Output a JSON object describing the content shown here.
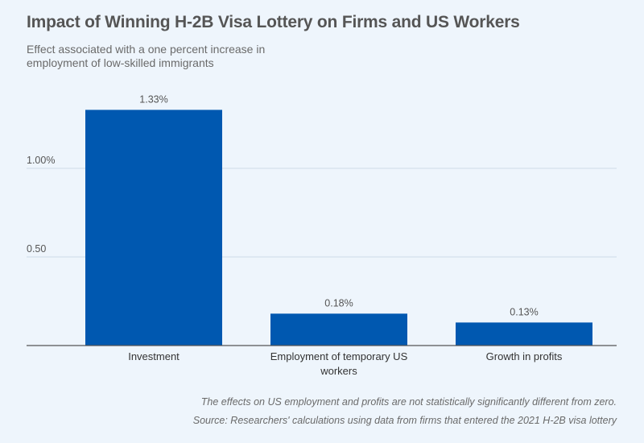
{
  "title": "Impact of Winning H-2B Visa Lottery on Firms and US Workers",
  "subtitle": "Effect associated with a one percent increase in employment of low-skilled immigrants",
  "note": "The effects on US employment and profits are not statistically significantly different from zero.",
  "source": "Source: Researchers' calculations using data from firms that entered the 2021 H-2B visa lottery",
  "colors": {
    "bar": "#0058b0",
    "grid": "#cfdbe8",
    "axis": "#555555",
    "background": "#eef5fc"
  },
  "chart_data": {
    "type": "bar",
    "title": "Impact of Winning H-2B Visa Lottery on Firms and US Workers",
    "subtitle": "Effect associated with a one percent increase in employment of low-skilled immigrants",
    "categories": [
      [
        "Investment"
      ],
      [
        "Employment of temporary US",
        "workers"
      ],
      [
        "Growth in profits"
      ]
    ],
    "values": [
      1.33,
      0.18,
      0.13
    ],
    "data_labels": [
      "1.33%",
      "0.18%",
      "0.13%"
    ],
    "yticks": [
      {
        "value": 0.5,
        "label": "0.50"
      },
      {
        "value": 1.0,
        "label": "1.00%"
      }
    ],
    "ylim": [
      0,
      1.45
    ],
    "xlabel": "",
    "ylabel": "",
    "grid": true,
    "legend": "none"
  }
}
